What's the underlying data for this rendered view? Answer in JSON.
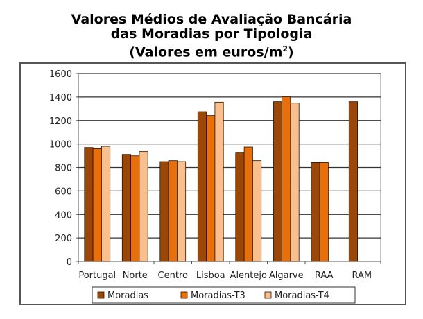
{
  "chart_data": {
    "type": "bar",
    "title": "Valores Médios de Avaliação Bancária das Moradias por Tipologia (Valores em euros/m²)",
    "title_lines": [
      "Valores Médios de Avaliação Bancária",
      "das Moradias por Tipologia",
      "(Valores em euros/m",
      "2",
      ")"
    ],
    "categories": [
      "Portugal",
      "Norte",
      "Centro",
      "Lisboa",
      "Alentejo",
      "Algarve",
      "RAA",
      "RAM"
    ],
    "series": [
      {
        "name": "Moradias",
        "color": "#9A4708",
        "values": [
          970,
          911,
          850,
          1275,
          929,
          1360,
          842,
          1360
        ]
      },
      {
        "name": "Moradias-T3",
        "color": "#E8700C",
        "values": [
          960,
          899,
          858,
          1242,
          974,
          1403,
          842,
          null
        ]
      },
      {
        "name": "Moradias-T4",
        "color": "#F9BF8C",
        "values": [
          980,
          935,
          850,
          1356,
          858,
          1348,
          null,
          null
        ]
      }
    ],
    "ylim": [
      0,
      1600
    ],
    "yticks": [
      0,
      200,
      400,
      600,
      800,
      1000,
      1200,
      1400,
      1600
    ],
    "grid": true,
    "legend": "bottom",
    "xlabel": "",
    "ylabel": ""
  }
}
